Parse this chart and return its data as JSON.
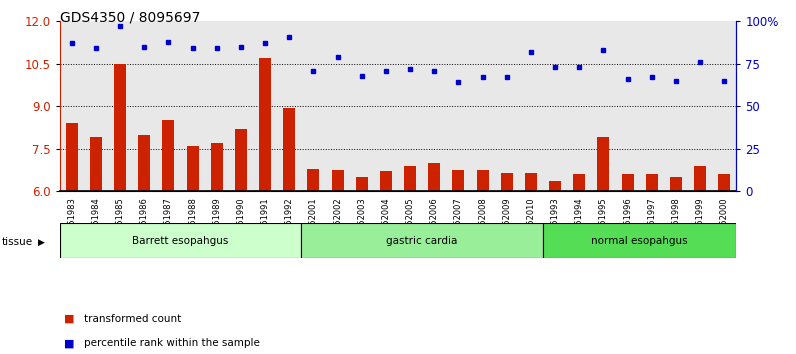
{
  "title": "GDS4350 / 8095697",
  "samples": [
    "GSM851983",
    "GSM851984",
    "GSM851985",
    "GSM851986",
    "GSM851987",
    "GSM851988",
    "GSM851989",
    "GSM851990",
    "GSM851991",
    "GSM851992",
    "GSM852001",
    "GSM852002",
    "GSM852003",
    "GSM852004",
    "GSM852005",
    "GSM852006",
    "GSM852007",
    "GSM852008",
    "GSM852009",
    "GSM852010",
    "GSM851993",
    "GSM851994",
    "GSM851995",
    "GSM851996",
    "GSM851997",
    "GSM851998",
    "GSM851999",
    "GSM852000"
  ],
  "bar_values": [
    8.4,
    7.9,
    10.5,
    8.0,
    8.5,
    7.6,
    7.7,
    8.2,
    10.7,
    8.95,
    6.8,
    6.75,
    6.5,
    6.7,
    6.9,
    7.0,
    6.75,
    6.75,
    6.65,
    6.65,
    6.35,
    6.6,
    7.9,
    6.6,
    6.6,
    6.5,
    6.9,
    6.6
  ],
  "dot_values": [
    87,
    84,
    97,
    85,
    88,
    84,
    84,
    85,
    87,
    91,
    71,
    79,
    68,
    71,
    72,
    71,
    64,
    67,
    67,
    82,
    73,
    73,
    83,
    66,
    67,
    65,
    76,
    65
  ],
  "groups": [
    {
      "label": "Barrett esopahgus",
      "start": 0,
      "end": 9,
      "color": "#ccffcc"
    },
    {
      "label": "gastric cardia",
      "start": 10,
      "end": 19,
      "color": "#99ee99"
    },
    {
      "label": "normal esopahgus",
      "start": 20,
      "end": 27,
      "color": "#55dd55"
    }
  ],
  "ylim_left": [
    6,
    12
  ],
  "yticks_left": [
    6,
    7.5,
    9,
    10.5,
    12
  ],
  "ylim_right": [
    0,
    100
  ],
  "yticks_right": [
    0,
    25,
    50,
    75,
    100
  ],
  "ytick_labels_right": [
    "0",
    "25",
    "50",
    "75",
    "100%"
  ],
  "bar_color": "#cc2200",
  "dot_color": "#0000cc",
  "grid_color": "#000000",
  "bg_color": "#ffffff",
  "bar_bg_color": "#e8e8e8",
  "legend_items": [
    {
      "color": "#cc2200",
      "label": "transformed count"
    },
    {
      "color": "#0000cc",
      "label": "percentile rank within the sample"
    }
  ],
  "tissue_label": "tissue",
  "title_fontsize": 10,
  "axis_fontsize": 8.5
}
